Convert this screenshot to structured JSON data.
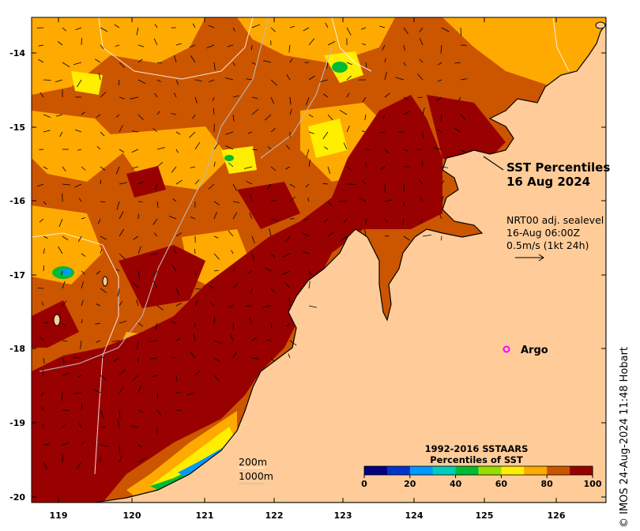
{
  "map": {
    "title_line1": "SST Percentiles",
    "title_line2": "16 Aug 2024",
    "current_info": {
      "line1": "NRT00 adj. sealevel",
      "line2": "16-Aug 06:00Z",
      "line3": "0.5m/s (1kt 24h)"
    },
    "argo_label": "Argo",
    "argo_color": "#ff00ff",
    "depth_labels": [
      "200m",
      "1000m"
    ],
    "credit": "© IMOS 24-Aug-2024 11:48 Hobart",
    "lat_ticks": [
      "-14",
      "-15",
      "-16",
      "-17",
      "-18",
      "-19",
      "-20"
    ],
    "lon_ticks": [
      "119",
      "120",
      "121",
      "122",
      "123",
      "124",
      "125",
      "126"
    ],
    "land_color": "#ffcc99"
  },
  "colorbar": {
    "title_line1": "1992-2016 SSTAARS",
    "title_line2": "Percentiles of SST",
    "tick_labels": [
      "0",
      "20",
      "40",
      "60",
      "80",
      "100"
    ],
    "colors": [
      "#00007f",
      "#0033cc",
      "#0099ff",
      "#00ccbb",
      "#00bb33",
      "#99dd00",
      "#ffee00",
      "#ffaa00",
      "#cc5500",
      "#990000"
    ]
  }
}
